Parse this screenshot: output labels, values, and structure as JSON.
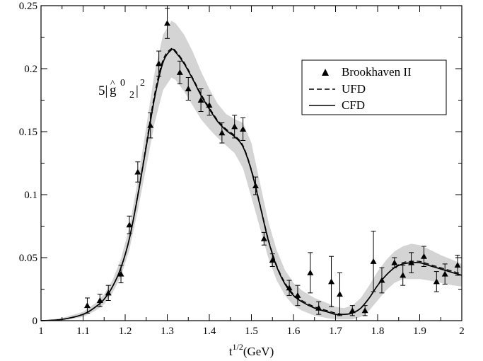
{
  "chart_data": {
    "type": "scatter",
    "xlabel_base": "t",
    "xlabel_sup": "1/2",
    "xlabel_unit": "(GeV)",
    "xlim": [
      1,
      2
    ],
    "ylim": [
      0,
      0.25
    ],
    "x_ticks": [
      1,
      1.1,
      1.2,
      1.3,
      1.4,
      1.5,
      1.6,
      1.7,
      1.8,
      1.9,
      2
    ],
    "x_tick_labels": [
      "1",
      "1.1",
      "1.2",
      "1.3",
      "1.4",
      "1.5",
      "1.6",
      "1.7",
      "1.8",
      "1.9",
      "2"
    ],
    "y_ticks": [
      0,
      0.05,
      0.1,
      0.15,
      0.2,
      0.25
    ],
    "y_tick_labels": [
      "0",
      "0.05",
      "0.1",
      "0.15",
      "0.2",
      "0.25"
    ],
    "grid": false,
    "legend_position": "top-right",
    "annotation": {
      "prefix": "5|",
      "g": "g",
      "hat": "^",
      "sup": "0",
      "sub": "2",
      "bar": "|",
      "power": "2"
    },
    "series": [
      {
        "name": "Brookhaven II",
        "kind": "points",
        "marker": "triangle",
        "points": [
          {
            "x": 1.11,
            "y": 0.012,
            "err": 0.006
          },
          {
            "x": 1.14,
            "y": 0.016,
            "err": 0.005
          },
          {
            "x": 1.16,
            "y": 0.022,
            "err": 0.006
          },
          {
            "x": 1.19,
            "y": 0.037,
            "err": 0.007
          },
          {
            "x": 1.21,
            "y": 0.076,
            "err": 0.007
          },
          {
            "x": 1.23,
            "y": 0.118,
            "err": 0.008
          },
          {
            "x": 1.26,
            "y": 0.155,
            "err": 0.01
          },
          {
            "x": 1.28,
            "y": 0.204,
            "err": 0.01
          },
          {
            "x": 1.3,
            "y": 0.236,
            "err": 0.012
          },
          {
            "x": 1.33,
            "y": 0.197,
            "err": 0.009
          },
          {
            "x": 1.35,
            "y": 0.184,
            "err": 0.009
          },
          {
            "x": 1.38,
            "y": 0.175,
            "err": 0.009
          },
          {
            "x": 1.4,
            "y": 0.171,
            "err": 0.008
          },
          {
            "x": 1.43,
            "y": 0.149,
            "err": 0.008
          },
          {
            "x": 1.46,
            "y": 0.154,
            "err": 0.009
          },
          {
            "x": 1.48,
            "y": 0.152,
            "err": 0.009
          },
          {
            "x": 1.51,
            "y": 0.107,
            "err": 0.007
          },
          {
            "x": 1.53,
            "y": 0.065,
            "err": 0.005
          },
          {
            "x": 1.55,
            "y": 0.048,
            "err": 0.005
          },
          {
            "x": 1.59,
            "y": 0.026,
            "err": 0.006
          },
          {
            "x": 1.61,
            "y": 0.02,
            "err": 0.008
          },
          {
            "x": 1.64,
            "y": 0.038,
            "err": 0.016
          },
          {
            "x": 1.66,
            "y": 0.01,
            "err": 0.005
          },
          {
            "x": 1.69,
            "y": 0.031,
            "err": 0.02
          },
          {
            "x": 1.71,
            "y": 0.021,
            "err": 0.017
          },
          {
            "x": 1.74,
            "y": 0.008,
            "err": 0.004
          },
          {
            "x": 1.77,
            "y": 0.008,
            "err": 0.004
          },
          {
            "x": 1.79,
            "y": 0.047,
            "err": 0.024
          },
          {
            "x": 1.81,
            "y": 0.032,
            "err": 0.01
          },
          {
            "x": 1.84,
            "y": 0.046,
            "err": 0.004
          },
          {
            "x": 1.86,
            "y": 0.036,
            "err": 0.008
          },
          {
            "x": 1.88,
            "y": 0.046,
            "err": 0.008
          },
          {
            "x": 1.91,
            "y": 0.051,
            "err": 0.008
          },
          {
            "x": 1.94,
            "y": 0.031,
            "err": 0.008
          },
          {
            "x": 1.96,
            "y": 0.037,
            "err": 0.008
          },
          {
            "x": 1.99,
            "y": 0.044,
            "err": 0.008
          }
        ]
      },
      {
        "name": "UFD",
        "kind": "line",
        "dash": true,
        "x": [
          1.0,
          1.05,
          1.1,
          1.13,
          1.15,
          1.17,
          1.19,
          1.21,
          1.23,
          1.25,
          1.27,
          1.29,
          1.31,
          1.32,
          1.34,
          1.36,
          1.38,
          1.4,
          1.42,
          1.44,
          1.46,
          1.48,
          1.5,
          1.52,
          1.54,
          1.56,
          1.58,
          1.6,
          1.62,
          1.65,
          1.68,
          1.7,
          1.72,
          1.74,
          1.76,
          1.78,
          1.8,
          1.82,
          1.84,
          1.86,
          1.88,
          1.9,
          1.92,
          1.95,
          1.98,
          2.0
        ],
        "y": [
          0.0,
          0.001,
          0.005,
          0.011,
          0.017,
          0.027,
          0.042,
          0.065,
          0.1,
          0.14,
          0.18,
          0.207,
          0.216,
          0.214,
          0.205,
          0.193,
          0.18,
          0.169,
          0.159,
          0.152,
          0.147,
          0.139,
          0.12,
          0.093,
          0.065,
          0.044,
          0.03,
          0.021,
          0.016,
          0.011,
          0.008,
          0.006,
          0.005,
          0.006,
          0.01,
          0.018,
          0.028,
          0.036,
          0.042,
          0.046,
          0.047,
          0.047,
          0.045,
          0.042,
          0.039,
          0.037
        ]
      },
      {
        "name": "CFD",
        "kind": "line",
        "dash": false,
        "x": [
          1.0,
          1.05,
          1.1,
          1.13,
          1.15,
          1.17,
          1.19,
          1.21,
          1.23,
          1.25,
          1.27,
          1.29,
          1.31,
          1.32,
          1.34,
          1.36,
          1.38,
          1.4,
          1.42,
          1.44,
          1.46,
          1.48,
          1.5,
          1.52,
          1.54,
          1.56,
          1.58,
          1.6,
          1.62,
          1.65,
          1.68,
          1.7,
          1.72,
          1.74,
          1.76,
          1.78,
          1.8,
          1.82,
          1.84,
          1.86,
          1.88,
          1.9,
          1.92,
          1.95,
          1.98,
          2.0
        ],
        "y": [
          0.0,
          0.001,
          0.005,
          0.011,
          0.017,
          0.027,
          0.042,
          0.065,
          0.099,
          0.138,
          0.177,
          0.205,
          0.215,
          0.213,
          0.204,
          0.192,
          0.179,
          0.168,
          0.158,
          0.151,
          0.146,
          0.138,
          0.119,
          0.092,
          0.064,
          0.043,
          0.029,
          0.02,
          0.015,
          0.01,
          0.007,
          0.005,
          0.005,
          0.006,
          0.01,
          0.018,
          0.028,
          0.036,
          0.042,
          0.045,
          0.046,
          0.046,
          0.044,
          0.041,
          0.038,
          0.036
        ]
      }
    ],
    "band": {
      "x": [
        1.0,
        1.05,
        1.1,
        1.13,
        1.15,
        1.17,
        1.19,
        1.21,
        1.23,
        1.25,
        1.27,
        1.29,
        1.31,
        1.32,
        1.34,
        1.36,
        1.38,
        1.4,
        1.42,
        1.44,
        1.46,
        1.48,
        1.5,
        1.52,
        1.54,
        1.56,
        1.58,
        1.6,
        1.62,
        1.65,
        1.68,
        1.7,
        1.72,
        1.74,
        1.76,
        1.78,
        1.8,
        1.82,
        1.84,
        1.86,
        1.88,
        1.9,
        1.92,
        1.95,
        1.98,
        2.0
      ],
      "upper": [
        0.0,
        0.002,
        0.007,
        0.014,
        0.021,
        0.032,
        0.049,
        0.074,
        0.111,
        0.154,
        0.197,
        0.227,
        0.238,
        0.236,
        0.227,
        0.214,
        0.198,
        0.184,
        0.172,
        0.164,
        0.16,
        0.157,
        0.141,
        0.11,
        0.079,
        0.056,
        0.04,
        0.03,
        0.024,
        0.018,
        0.014,
        0.011,
        0.01,
        0.012,
        0.018,
        0.028,
        0.039,
        0.048,
        0.055,
        0.059,
        0.061,
        0.06,
        0.057,
        0.052,
        0.048,
        0.045
      ],
      "lower": [
        0.0,
        0.0,
        0.003,
        0.008,
        0.013,
        0.022,
        0.035,
        0.056,
        0.087,
        0.122,
        0.157,
        0.183,
        0.193,
        0.191,
        0.182,
        0.171,
        0.16,
        0.152,
        0.145,
        0.139,
        0.133,
        0.121,
        0.098,
        0.074,
        0.05,
        0.032,
        0.02,
        0.012,
        0.008,
        0.004,
        0.002,
        0.001,
        0.001,
        0.001,
        0.003,
        0.008,
        0.016,
        0.024,
        0.03,
        0.033,
        0.033,
        0.033,
        0.032,
        0.03,
        0.028,
        0.027
      ]
    }
  }
}
